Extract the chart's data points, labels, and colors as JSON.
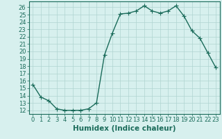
{
  "x": [
    0,
    1,
    2,
    3,
    4,
    5,
    6,
    7,
    8,
    9,
    10,
    11,
    12,
    13,
    14,
    15,
    16,
    17,
    18,
    19,
    20,
    21,
    22,
    23
  ],
  "y": [
    15.5,
    13.8,
    13.3,
    12.2,
    12.0,
    12.0,
    12.0,
    12.2,
    13.0,
    19.5,
    22.5,
    25.1,
    25.2,
    25.5,
    26.2,
    25.5,
    25.2,
    25.5,
    26.2,
    24.8,
    22.8,
    21.8,
    19.8,
    17.8
  ],
  "line_color": "#1a6b5a",
  "marker": "+",
  "marker_size": 4,
  "bg_color": "#d7f0ee",
  "grid_color": "#b0d4d0",
  "xlabel": "Humidex (Indice chaleur)",
  "ylim_min": 11.5,
  "ylim_max": 26.8,
  "xlim_min": -0.5,
  "xlim_max": 23.5,
  "yticks": [
    12,
    13,
    14,
    15,
    16,
    17,
    18,
    19,
    20,
    21,
    22,
    23,
    24,
    25,
    26
  ],
  "xticks": [
    0,
    1,
    2,
    3,
    4,
    5,
    6,
    7,
    8,
    9,
    10,
    11,
    12,
    13,
    14,
    15,
    16,
    17,
    18,
    19,
    20,
    21,
    22,
    23
  ],
  "tick_label_color": "#1a6b5a",
  "tick_label_fontsize": 6,
  "xlabel_fontsize": 7.5,
  "xlabel_color": "#1a6b5a",
  "line_width": 1.0,
  "axis_color": "#1a6b5a",
  "marker_edge_width": 0.8
}
